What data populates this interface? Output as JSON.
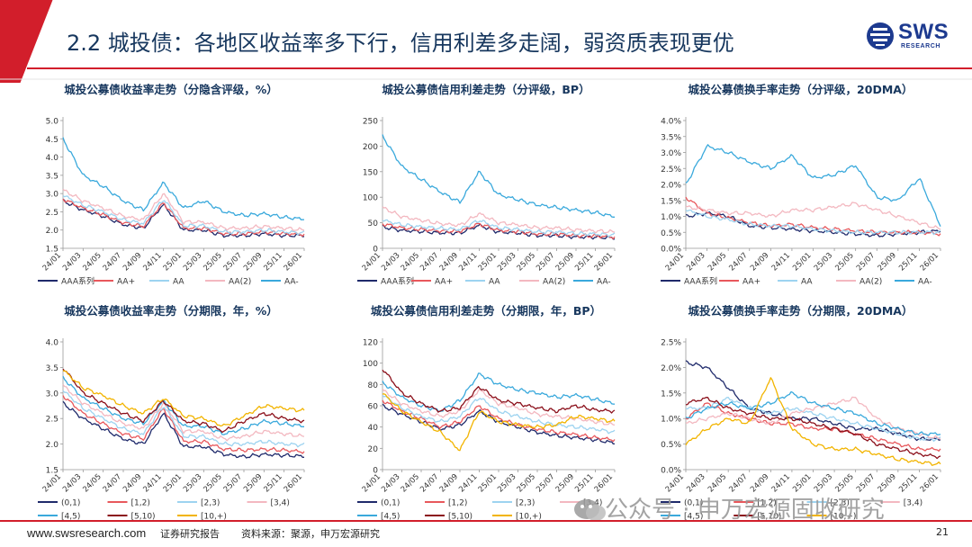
{
  "slide": {
    "title": "2.2 城投债：各地区收益率多下行，信用利差多走阔，弱资质表现更优",
    "logo_text": "SWS",
    "logo_sub": "RESEARCH",
    "accent_color": "#d21e2b",
    "title_color": "#17375e"
  },
  "footer": {
    "url": "www.swsresearch.com",
    "badge": "证券研究报告",
    "source": "资料来源：聚源，申万宏源研究",
    "page": "21"
  },
  "watermark": {
    "text": "公众号 · 申万宏源固收研究"
  },
  "chart_data": [
    {
      "id": "c1",
      "type": "line",
      "title": "城投公募债收益率走势（分隐含评级，%）",
      "ylim": [
        1.5,
        5.0
      ],
      "yticks": [
        1.5,
        2.0,
        2.5,
        3.0,
        3.5,
        4.0,
        4.5,
        5.0
      ],
      "ydec": 1,
      "xticks": [
        "24/01",
        "24/03",
        "24/05",
        "24/07",
        "24/09",
        "24/11",
        "25/01",
        "25/03",
        "25/05",
        "25/07",
        "25/09",
        "25/11",
        "26/01"
      ],
      "series": [
        {
          "name": "AAA系列",
          "color": "#1f2a6b",
          "values": [
            2.8,
            2.55,
            2.38,
            2.15,
            2.05,
            2.7,
            2.0,
            2.0,
            1.85,
            1.85,
            1.9,
            1.85,
            1.85
          ]
        },
        {
          "name": "AA+",
          "color": "#e8585c",
          "values": [
            2.85,
            2.6,
            2.42,
            2.2,
            2.1,
            2.75,
            2.05,
            2.05,
            1.9,
            1.9,
            1.95,
            1.9,
            1.88
          ]
        },
        {
          "name": "AA",
          "color": "#9dd3f0",
          "values": [
            2.95,
            2.68,
            2.5,
            2.28,
            2.18,
            2.85,
            2.12,
            2.12,
            1.95,
            1.95,
            2.0,
            1.95,
            1.92
          ]
        },
        {
          "name": "AA(2)",
          "color": "#f3b8c0",
          "values": [
            3.1,
            2.8,
            2.6,
            2.38,
            2.28,
            3.0,
            2.22,
            2.22,
            2.05,
            2.05,
            2.1,
            2.05,
            2.0
          ]
        },
        {
          "name": "AA-",
          "color": "#3aa9dc",
          "values": [
            4.5,
            3.5,
            3.2,
            2.8,
            2.55,
            3.3,
            2.6,
            2.8,
            2.5,
            2.4,
            2.45,
            2.35,
            2.3
          ]
        }
      ]
    },
    {
      "id": "c2",
      "type": "line",
      "title": "城投公募债信用利差走势（分评级，BP）",
      "ylim": [
        0,
        250
      ],
      "yticks": [
        0,
        50,
        100,
        150,
        200,
        250
      ],
      "ydec": 0,
      "xticks": [
        "24/01",
        "24/03",
        "24/05",
        "24/07",
        "24/09",
        "24/11",
        "25/01",
        "25/03",
        "25/05",
        "25/07",
        "25/09",
        "25/11",
        "26/01"
      ],
      "series": [
        {
          "name": "AAA系列",
          "color": "#1f2a6b",
          "values": [
            42,
            35,
            33,
            30,
            30,
            45,
            32,
            30,
            25,
            25,
            22,
            22,
            20
          ]
        },
        {
          "name": "AA+",
          "color": "#e8585c",
          "values": [
            48,
            40,
            37,
            34,
            33,
            48,
            35,
            33,
            28,
            28,
            25,
            24,
            22
          ]
        },
        {
          "name": "AA",
          "color": "#9dd3f0",
          "values": [
            55,
            46,
            42,
            39,
            37,
            55,
            40,
            37,
            32,
            32,
            29,
            28,
            26
          ]
        },
        {
          "name": "AA(2)",
          "color": "#f3b8c0",
          "values": [
            80,
            62,
            55,
            48,
            45,
            68,
            50,
            46,
            40,
            40,
            36,
            34,
            32
          ]
        },
        {
          "name": "AA-",
          "color": "#3aa9dc",
          "values": [
            220,
            160,
            135,
            110,
            90,
            150,
            105,
            95,
            85,
            80,
            75,
            70,
            62
          ]
        }
      ]
    },
    {
      "id": "c3",
      "type": "line",
      "title": "城投公募债换手率走势（分评级，20DMA）",
      "ylim": [
        0,
        4.0
      ],
      "yticks": [
        0,
        0.5,
        1.0,
        1.5,
        2.0,
        2.5,
        3.0,
        3.5,
        4.0
      ],
      "ydec": 1,
      "pct": true,
      "xticks": [
        "24/01",
        "24/03",
        "24/05",
        "24/07",
        "24/09",
        "24/11",
        "25/01",
        "25/03",
        "25/05",
        "25/07",
        "25/09",
        "25/11",
        "26/01"
      ],
      "series": [
        {
          "name": "AAA系列",
          "color": "#1f2a6b",
          "values": [
            1.0,
            1.1,
            1.0,
            0.7,
            0.65,
            0.6,
            0.55,
            0.5,
            0.45,
            0.4,
            0.45,
            0.5,
            0.55
          ]
        },
        {
          "name": "AA+",
          "color": "#e8585c",
          "values": [
            1.6,
            1.1,
            0.95,
            0.8,
            0.7,
            0.75,
            0.65,
            0.6,
            0.55,
            0.5,
            0.5,
            0.5,
            0.45
          ]
        },
        {
          "name": "AA",
          "color": "#9dd3f0",
          "values": [
            1.2,
            1.0,
            0.9,
            0.75,
            0.7,
            0.7,
            0.6,
            0.55,
            0.5,
            0.5,
            0.5,
            0.5,
            0.5
          ]
        },
        {
          "name": "AA(2)",
          "color": "#f3b8c0",
          "values": [
            1.3,
            1.2,
            1.1,
            1.1,
            1.0,
            1.2,
            1.2,
            1.3,
            1.4,
            1.2,
            1.0,
            0.8,
            0.6
          ]
        },
        {
          "name": "AA-",
          "color": "#3aa9dc",
          "values": [
            2.0,
            3.2,
            3.0,
            2.7,
            2.5,
            2.9,
            2.2,
            2.3,
            2.6,
            1.6,
            1.5,
            2.2,
            0.7
          ]
        }
      ]
    },
    {
      "id": "c4",
      "type": "line",
      "title": "城投公募债收益率走势（分期限，年，%）",
      "ylim": [
        1.5,
        4.0
      ],
      "yticks": [
        1.5,
        2.0,
        2.5,
        3.0,
        3.5,
        4.0
      ],
      "ydec": 1,
      "xticks": [
        "24/01",
        "24/03",
        "24/05",
        "24/07",
        "24/09",
        "24/11",
        "25/01",
        "25/03",
        "25/05",
        "25/07",
        "25/09",
        "25/11",
        "26/01"
      ],
      "series": [
        {
          "name": "(0,1)",
          "color": "#1f2a6b",
          "values": [
            2.8,
            2.5,
            2.3,
            2.1,
            2.0,
            2.6,
            1.95,
            1.95,
            1.8,
            1.75,
            1.8,
            1.78,
            1.76
          ]
        },
        {
          "name": "[1,2)",
          "color": "#e8585c",
          "values": [
            2.95,
            2.6,
            2.4,
            2.2,
            2.1,
            2.7,
            2.05,
            2.05,
            1.9,
            1.88,
            1.9,
            1.88,
            1.85
          ]
        },
        {
          "name": "[2,3)",
          "color": "#9dd3f0",
          "values": [
            3.05,
            2.7,
            2.5,
            2.3,
            2.2,
            2.75,
            2.15,
            2.15,
            2.0,
            2.0,
            2.05,
            2.0,
            1.98
          ]
        },
        {
          "name": "[3,4)",
          "color": "#f3b8c0",
          "values": [
            3.15,
            2.8,
            2.6,
            2.4,
            2.3,
            2.8,
            2.25,
            2.25,
            2.1,
            2.15,
            2.25,
            2.2,
            2.15
          ]
        },
        {
          "name": "[4,5)",
          "color": "#3aa9dc",
          "values": [
            3.3,
            2.9,
            2.7,
            2.5,
            2.4,
            2.85,
            2.35,
            2.35,
            2.2,
            2.3,
            2.45,
            2.4,
            2.35
          ]
        },
        {
          "name": "[5,10)",
          "color": "#8b0f1a",
          "values": [
            3.5,
            3.0,
            2.8,
            2.6,
            2.45,
            2.85,
            2.45,
            2.4,
            2.25,
            2.45,
            2.6,
            2.5,
            2.45
          ]
        },
        {
          "name": "[10,+)",
          "color": "#f2b400",
          "values": [
            3.45,
            3.1,
            2.95,
            2.75,
            2.6,
            2.9,
            2.55,
            2.5,
            2.35,
            2.55,
            2.75,
            2.7,
            2.65
          ]
        }
      ]
    },
    {
      "id": "c5",
      "type": "line",
      "title": "城投公募债信用利差走势（分期限，年，BP）",
      "ylim": [
        0,
        120
      ],
      "yticks": [
        0,
        20,
        40,
        60,
        80,
        100,
        120
      ],
      "ydec": 0,
      "xticks": [
        "24/01",
        "24/03",
        "24/05",
        "24/07",
        "24/09",
        "24/11",
        "25/01",
        "25/03",
        "25/05",
        "25/07",
        "25/09",
        "25/11",
        "26/01"
      ],
      "series": [
        {
          "name": "(0,1)",
          "color": "#1f2a6b",
          "values": [
            60,
            52,
            45,
            38,
            42,
            55,
            45,
            40,
            35,
            32,
            30,
            28,
            25
          ]
        },
        {
          "name": "[1,2)",
          "color": "#e8585c",
          "values": [
            65,
            55,
            48,
            40,
            45,
            60,
            48,
            42,
            38,
            35,
            33,
            30,
            28
          ]
        },
        {
          "name": "[2,3)",
          "color": "#9dd3f0",
          "values": [
            70,
            58,
            50,
            45,
            50,
            68,
            55,
            50,
            45,
            42,
            40,
            38,
            35
          ]
        },
        {
          "name": "[3,4)",
          "color": "#f3b8c0",
          "values": [
            75,
            62,
            55,
            50,
            55,
            75,
            62,
            58,
            52,
            50,
            48,
            45,
            42
          ]
        },
        {
          "name": "[4,5)",
          "color": "#3aa9dc",
          "values": [
            82,
            68,
            60,
            55,
            65,
            90,
            80,
            75,
            72,
            68,
            70,
            66,
            62
          ]
        },
        {
          "name": "[5,10)",
          "color": "#8b0f1a",
          "values": [
            95,
            72,
            62,
            55,
            58,
            78,
            65,
            62,
            58,
            55,
            60,
            56,
            55
          ]
        },
        {
          "name": "[10,+)",
          "color": "#f2b400",
          "values": [
            72,
            55,
            45,
            35,
            18,
            55,
            45,
            42,
            40,
            42,
            50,
            48,
            45
          ]
        }
      ]
    },
    {
      "id": "c6",
      "type": "line",
      "title": "城投公募债换手率走势（分期限，20DMA）",
      "ylim": [
        0,
        2.5
      ],
      "yticks": [
        0,
        0.5,
        1.0,
        1.5,
        2.0,
        2.5
      ],
      "ydec": 1,
      "pct": true,
      "xticks": [
        "24/01",
        "24/03",
        "24/05",
        "24/07",
        "24/09",
        "24/11",
        "25/01",
        "25/03",
        "25/05",
        "25/07",
        "25/09",
        "25/11",
        "26/01"
      ],
      "series": [
        {
          "name": "(0,1)",
          "color": "#1f2a6b",
          "values": [
            2.1,
            2.0,
            1.6,
            1.2,
            1.1,
            1.0,
            1.0,
            0.9,
            0.8,
            0.8,
            0.7,
            0.6,
            0.6
          ]
        },
        {
          "name": "[1,2)",
          "color": "#e8585c",
          "values": [
            1.0,
            1.3,
            1.1,
            1.0,
            0.9,
            0.9,
            0.8,
            0.8,
            0.7,
            0.6,
            0.5,
            0.4,
            0.4
          ]
        },
        {
          "name": "[2,3)",
          "color": "#9dd3f0",
          "values": [
            1.2,
            1.2,
            1.4,
            1.2,
            1.1,
            1.2,
            1.1,
            1.0,
            0.9,
            0.8,
            0.7,
            0.6,
            0.6
          ]
        },
        {
          "name": "[3,4)",
          "color": "#f3b8c0",
          "values": [
            0.9,
            1.0,
            1.1,
            1.0,
            0.9,
            1.1,
            1.2,
            1.3,
            1.4,
            1.0,
            0.8,
            0.7,
            0.6
          ]
        },
        {
          "name": "[4,5)",
          "color": "#3aa9dc",
          "values": [
            1.0,
            1.2,
            1.3,
            1.2,
            1.3,
            1.5,
            1.3,
            1.2,
            1.1,
            0.9,
            0.8,
            0.7,
            0.7
          ]
        },
        {
          "name": "[5,10)",
          "color": "#8b0f1a",
          "values": [
            1.3,
            1.4,
            1.2,
            1.1,
            1.0,
            1.0,
            0.9,
            0.8,
            0.7,
            0.5,
            0.4,
            0.3,
            0.25
          ]
        },
        {
          "name": "[10,+)",
          "color": "#f2b400",
          "values": [
            0.5,
            0.8,
            1.0,
            0.9,
            1.8,
            0.8,
            0.5,
            0.4,
            0.4,
            0.3,
            0.2,
            0.15,
            0.1
          ]
        }
      ]
    }
  ]
}
